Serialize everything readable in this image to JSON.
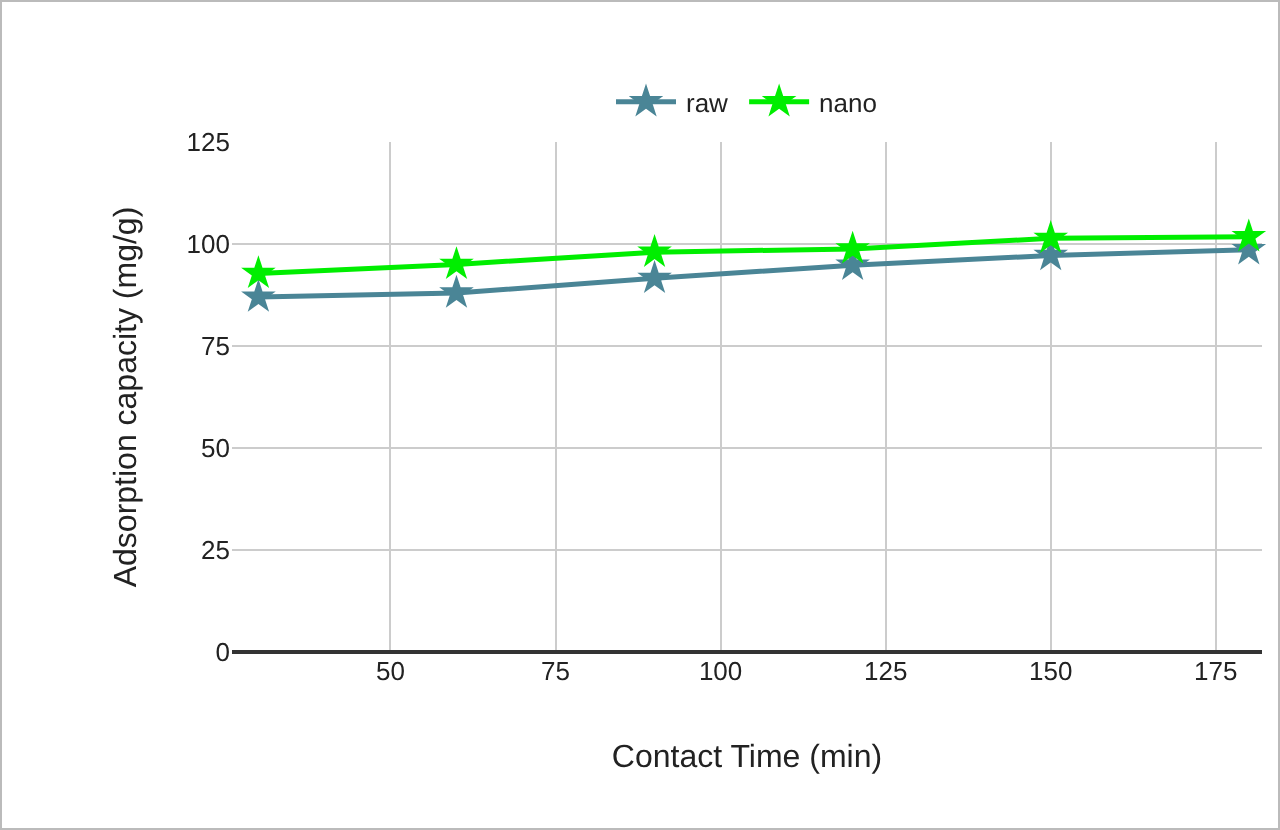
{
  "chart_data": {
    "type": "line",
    "xlabel": "Contact Time (min)",
    "ylabel": "Adsorption capacity (mg/g)",
    "x": [
      30,
      60,
      90,
      120,
      150,
      180
    ],
    "series": [
      {
        "name": "raw",
        "color": "#4a8596",
        "values": [
          87,
          88,
          91.6,
          94.8,
          97.2,
          98.6
        ]
      },
      {
        "name": "nano",
        "color": "#00ee00",
        "values": [
          92.8,
          95,
          98,
          98.8,
          101.4,
          101.8
        ]
      }
    ],
    "xlim": [
      26,
      182
    ],
    "xticks": [
      50,
      75,
      100,
      125,
      150,
      175
    ],
    "ylim": [
      0,
      125
    ],
    "yticks": [
      0,
      25,
      50,
      75,
      100,
      125
    ],
    "grid": true,
    "legend": "top",
    "marker": "star",
    "line_style": "solid"
  }
}
